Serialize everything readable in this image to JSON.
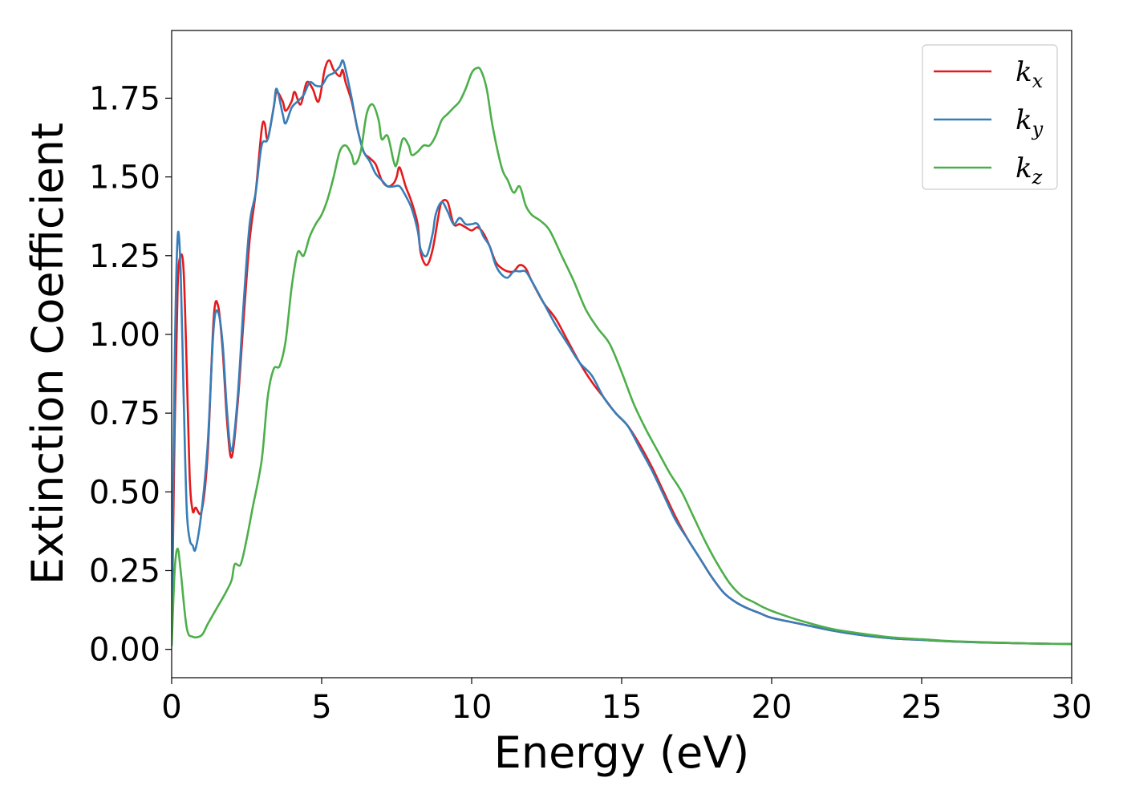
{
  "chart_data": {
    "type": "line",
    "xlabel": "Energy (eV)",
    "ylabel": "Extinction Coefficient",
    "xlim": [
      0,
      30
    ],
    "ylim": [
      -0.09,
      1.965
    ],
    "xticks": [
      0,
      5,
      10,
      15,
      20,
      25,
      30
    ],
    "xtick_labels": [
      "0",
      "5",
      "10",
      "15",
      "20",
      "25",
      "30"
    ],
    "yticks": [
      0.0,
      0.25,
      0.5,
      0.75,
      1.0,
      1.25,
      1.5,
      1.75
    ],
    "ytick_labels": [
      "0.00",
      "0.25",
      "0.50",
      "0.75",
      "1.00",
      "1.25",
      "1.50",
      "1.75"
    ],
    "grid": false,
    "legend_position": "top-right",
    "series": [
      {
        "name": "k",
        "subscript": "x",
        "color": "#e41a1c",
        "points": [
          [
            0,
            0.02
          ],
          [
            0.1,
            0.7
          ],
          [
            0.2,
            1.15
          ],
          [
            0.3,
            1.25
          ],
          [
            0.4,
            1.2
          ],
          [
            0.5,
            0.9
          ],
          [
            0.6,
            0.55
          ],
          [
            0.7,
            0.44
          ],
          [
            0.8,
            0.45
          ],
          [
            1.0,
            0.44
          ],
          [
            1.2,
            0.62
          ],
          [
            1.4,
            1.05
          ],
          [
            1.55,
            1.09
          ],
          [
            1.7,
            0.95
          ],
          [
            1.85,
            0.72
          ],
          [
            2.0,
            0.61
          ],
          [
            2.2,
            0.78
          ],
          [
            2.4,
            1.05
          ],
          [
            2.6,
            1.3
          ],
          [
            2.8,
            1.45
          ],
          [
            3.0,
            1.65
          ],
          [
            3.1,
            1.67
          ],
          [
            3.2,
            1.62
          ],
          [
            3.4,
            1.72
          ],
          [
            3.5,
            1.77
          ],
          [
            3.7,
            1.74
          ],
          [
            3.8,
            1.71
          ],
          [
            4.0,
            1.74
          ],
          [
            4.1,
            1.77
          ],
          [
            4.3,
            1.73
          ],
          [
            4.5,
            1.8
          ],
          [
            4.7,
            1.78
          ],
          [
            4.9,
            1.74
          ],
          [
            5.1,
            1.84
          ],
          [
            5.25,
            1.87
          ],
          [
            5.4,
            1.84
          ],
          [
            5.6,
            1.82
          ],
          [
            5.7,
            1.84
          ],
          [
            5.8,
            1.8
          ],
          [
            6.0,
            1.74
          ],
          [
            6.2,
            1.65
          ],
          [
            6.4,
            1.58
          ],
          [
            6.6,
            1.56
          ],
          [
            6.8,
            1.54
          ],
          [
            7.0,
            1.49
          ],
          [
            7.2,
            1.47
          ],
          [
            7.4,
            1.48
          ],
          [
            7.5,
            1.5
          ],
          [
            7.6,
            1.53
          ],
          [
            7.8,
            1.47
          ],
          [
            8.0,
            1.42
          ],
          [
            8.2,
            1.35
          ],
          [
            8.3,
            1.26
          ],
          [
            8.5,
            1.22
          ],
          [
            8.7,
            1.27
          ],
          [
            8.9,
            1.38
          ],
          [
            9.0,
            1.42
          ],
          [
            9.2,
            1.42
          ],
          [
            9.4,
            1.35
          ],
          [
            9.6,
            1.35
          ],
          [
            9.8,
            1.34
          ],
          [
            10.0,
            1.33
          ],
          [
            10.2,
            1.34
          ],
          [
            10.4,
            1.32
          ],
          [
            10.6,
            1.28
          ],
          [
            10.8,
            1.23
          ],
          [
            11.0,
            1.21
          ],
          [
            11.2,
            1.2
          ],
          [
            11.4,
            1.2
          ],
          [
            11.6,
            1.22
          ],
          [
            11.8,
            1.21
          ],
          [
            12.0,
            1.17
          ],
          [
            12.4,
            1.1
          ],
          [
            12.8,
            1.05
          ],
          [
            13.2,
            0.98
          ],
          [
            13.6,
            0.91
          ],
          [
            14.0,
            0.85
          ],
          [
            14.4,
            0.8
          ],
          [
            14.8,
            0.75
          ],
          [
            15.2,
            0.71
          ],
          [
            15.6,
            0.65
          ],
          [
            16.0,
            0.58
          ],
          [
            16.4,
            0.5
          ],
          [
            16.8,
            0.42
          ],
          [
            17.2,
            0.35
          ],
          [
            17.6,
            0.29
          ],
          [
            18.0,
            0.23
          ],
          [
            18.4,
            0.18
          ],
          [
            18.8,
            0.15
          ],
          [
            19.2,
            0.13
          ],
          [
            19.6,
            0.115
          ],
          [
            20.0,
            0.1
          ],
          [
            21.0,
            0.08
          ],
          [
            22.0,
            0.06
          ],
          [
            23.0,
            0.045
          ],
          [
            24.0,
            0.035
          ],
          [
            25.0,
            0.03
          ],
          [
            26.0,
            0.025
          ],
          [
            27.0,
            0.022
          ],
          [
            28.0,
            0.02
          ],
          [
            29.0,
            0.018
          ],
          [
            30.0,
            0.017
          ]
        ]
      },
      {
        "name": "k",
        "subscript": "y",
        "color": "#377eb8",
        "points": [
          [
            0,
            0.02
          ],
          [
            0.1,
            0.9
          ],
          [
            0.2,
            1.31
          ],
          [
            0.3,
            1.2
          ],
          [
            0.4,
            0.8
          ],
          [
            0.5,
            0.45
          ],
          [
            0.6,
            0.35
          ],
          [
            0.7,
            0.33
          ],
          [
            0.8,
            0.32
          ],
          [
            1.0,
            0.44
          ],
          [
            1.2,
            0.65
          ],
          [
            1.4,
            1.02
          ],
          [
            1.55,
            1.07
          ],
          [
            1.7,
            0.97
          ],
          [
            1.85,
            0.75
          ],
          [
            2.0,
            0.63
          ],
          [
            2.2,
            0.8
          ],
          [
            2.4,
            1.1
          ],
          [
            2.6,
            1.35
          ],
          [
            2.8,
            1.45
          ],
          [
            3.0,
            1.6
          ],
          [
            3.2,
            1.62
          ],
          [
            3.4,
            1.72
          ],
          [
            3.5,
            1.78
          ],
          [
            3.7,
            1.7
          ],
          [
            3.8,
            1.67
          ],
          [
            4.0,
            1.72
          ],
          [
            4.2,
            1.74
          ],
          [
            4.4,
            1.76
          ],
          [
            4.6,
            1.8
          ],
          [
            4.8,
            1.79
          ],
          [
            5.0,
            1.79
          ],
          [
            5.2,
            1.82
          ],
          [
            5.4,
            1.83
          ],
          [
            5.6,
            1.85
          ],
          [
            5.7,
            1.87
          ],
          [
            5.8,
            1.84
          ],
          [
            6.0,
            1.75
          ],
          [
            6.2,
            1.65
          ],
          [
            6.4,
            1.58
          ],
          [
            6.6,
            1.55
          ],
          [
            6.8,
            1.51
          ],
          [
            7.0,
            1.49
          ],
          [
            7.2,
            1.47
          ],
          [
            7.4,
            1.47
          ],
          [
            7.6,
            1.47
          ],
          [
            7.8,
            1.44
          ],
          [
            8.0,
            1.4
          ],
          [
            8.2,
            1.33
          ],
          [
            8.3,
            1.27
          ],
          [
            8.5,
            1.25
          ],
          [
            8.7,
            1.32
          ],
          [
            8.8,
            1.38
          ],
          [
            9.0,
            1.42
          ],
          [
            9.2,
            1.39
          ],
          [
            9.4,
            1.35
          ],
          [
            9.6,
            1.37
          ],
          [
            9.8,
            1.35
          ],
          [
            10.0,
            1.35
          ],
          [
            10.2,
            1.35
          ],
          [
            10.4,
            1.31
          ],
          [
            10.6,
            1.28
          ],
          [
            10.8,
            1.22
          ],
          [
            11.0,
            1.19
          ],
          [
            11.2,
            1.18
          ],
          [
            11.4,
            1.2
          ],
          [
            11.6,
            1.2
          ],
          [
            11.8,
            1.2
          ],
          [
            12.0,
            1.17
          ],
          [
            12.4,
            1.1
          ],
          [
            12.8,
            1.03
          ],
          [
            13.2,
            0.97
          ],
          [
            13.6,
            0.91
          ],
          [
            14.0,
            0.87
          ],
          [
            14.4,
            0.8
          ],
          [
            14.8,
            0.75
          ],
          [
            15.2,
            0.71
          ],
          [
            15.6,
            0.64
          ],
          [
            16.0,
            0.57
          ],
          [
            16.4,
            0.49
          ],
          [
            16.8,
            0.41
          ],
          [
            17.2,
            0.35
          ],
          [
            17.6,
            0.29
          ],
          [
            18.0,
            0.23
          ],
          [
            18.4,
            0.18
          ],
          [
            18.8,
            0.15
          ],
          [
            19.2,
            0.13
          ],
          [
            19.6,
            0.115
          ],
          [
            20.0,
            0.1
          ],
          [
            21.0,
            0.08
          ],
          [
            22.0,
            0.06
          ],
          [
            23.0,
            0.045
          ],
          [
            24.0,
            0.035
          ],
          [
            25.0,
            0.03
          ],
          [
            26.0,
            0.025
          ],
          [
            27.0,
            0.022
          ],
          [
            28.0,
            0.02
          ],
          [
            29.0,
            0.018
          ],
          [
            30.0,
            0.017
          ]
        ]
      },
      {
        "name": "k",
        "subscript": "z",
        "color": "#4daf4a",
        "points": [
          [
            0,
            0.01
          ],
          [
            0.1,
            0.25
          ],
          [
            0.2,
            0.32
          ],
          [
            0.3,
            0.25
          ],
          [
            0.5,
            0.07
          ],
          [
            0.7,
            0.04
          ],
          [
            1.0,
            0.045
          ],
          [
            1.2,
            0.08
          ],
          [
            1.5,
            0.13
          ],
          [
            1.8,
            0.18
          ],
          [
            2.0,
            0.22
          ],
          [
            2.1,
            0.27
          ],
          [
            2.3,
            0.27
          ],
          [
            2.5,
            0.35
          ],
          [
            2.7,
            0.45
          ],
          [
            3.0,
            0.6
          ],
          [
            3.2,
            0.8
          ],
          [
            3.4,
            0.89
          ],
          [
            3.6,
            0.9
          ],
          [
            3.8,
            0.98
          ],
          [
            4.0,
            1.15
          ],
          [
            4.2,
            1.26
          ],
          [
            4.4,
            1.25
          ],
          [
            4.6,
            1.31
          ],
          [
            4.8,
            1.35
          ],
          [
            5.0,
            1.38
          ],
          [
            5.2,
            1.43
          ],
          [
            5.4,
            1.5
          ],
          [
            5.6,
            1.58
          ],
          [
            5.8,
            1.6
          ],
          [
            6.0,
            1.57
          ],
          [
            6.1,
            1.54
          ],
          [
            6.3,
            1.58
          ],
          [
            6.5,
            1.7
          ],
          [
            6.7,
            1.73
          ],
          [
            6.9,
            1.68
          ],
          [
            7.0,
            1.62
          ],
          [
            7.2,
            1.63
          ],
          [
            7.4,
            1.55
          ],
          [
            7.5,
            1.54
          ],
          [
            7.7,
            1.62
          ],
          [
            7.9,
            1.6
          ],
          [
            8.0,
            1.57
          ],
          [
            8.2,
            1.58
          ],
          [
            8.4,
            1.6
          ],
          [
            8.6,
            1.6
          ],
          [
            8.8,
            1.63
          ],
          [
            9.0,
            1.68
          ],
          [
            9.2,
            1.7
          ],
          [
            9.4,
            1.72
          ],
          [
            9.6,
            1.74
          ],
          [
            9.8,
            1.78
          ],
          [
            10.0,
            1.83
          ],
          [
            10.15,
            1.845
          ],
          [
            10.3,
            1.84
          ],
          [
            10.5,
            1.78
          ],
          [
            10.7,
            1.66
          ],
          [
            11.0,
            1.53
          ],
          [
            11.2,
            1.49
          ],
          [
            11.4,
            1.45
          ],
          [
            11.6,
            1.47
          ],
          [
            11.8,
            1.41
          ],
          [
            12.0,
            1.38
          ],
          [
            12.3,
            1.36
          ],
          [
            12.6,
            1.33
          ],
          [
            13.0,
            1.25
          ],
          [
            13.4,
            1.17
          ],
          [
            13.8,
            1.08
          ],
          [
            14.2,
            1.02
          ],
          [
            14.6,
            0.97
          ],
          [
            15.0,
            0.88
          ],
          [
            15.4,
            0.78
          ],
          [
            15.8,
            0.7
          ],
          [
            16.2,
            0.63
          ],
          [
            16.6,
            0.56
          ],
          [
            17.0,
            0.5
          ],
          [
            17.4,
            0.42
          ],
          [
            17.8,
            0.34
          ],
          [
            18.2,
            0.27
          ],
          [
            18.6,
            0.21
          ],
          [
            19.0,
            0.17
          ],
          [
            19.4,
            0.15
          ],
          [
            19.8,
            0.13
          ],
          [
            20.2,
            0.115
          ],
          [
            21.0,
            0.09
          ],
          [
            22.0,
            0.065
          ],
          [
            23.0,
            0.05
          ],
          [
            24.0,
            0.038
          ],
          [
            25.0,
            0.032
          ],
          [
            26.0,
            0.026
          ],
          [
            27.0,
            0.023
          ],
          [
            28.0,
            0.02
          ],
          [
            29.0,
            0.018
          ],
          [
            30.0,
            0.017
          ]
        ]
      }
    ]
  }
}
